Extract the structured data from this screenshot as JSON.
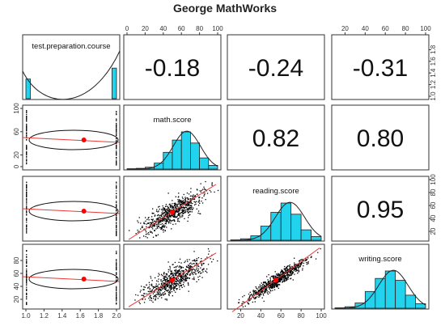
{
  "chart_data": {
    "type": "scatter",
    "title": "George MathWorks",
    "variables": [
      "test.preparation.course",
      "math.score",
      "reading.score",
      "writing.score"
    ],
    "correlations": [
      {
        "row": 0,
        "col": 1,
        "label": "-0.18",
        "value": -0.18
      },
      {
        "row": 0,
        "col": 2,
        "label": "-0.24",
        "value": -0.24
      },
      {
        "row": 0,
        "col": 3,
        "label": "-0.31",
        "value": -0.31
      },
      {
        "row": 1,
        "col": 2,
        "label": "0.82",
        "value": 0.82
      },
      {
        "row": 1,
        "col": 3,
        "label": "0.80",
        "value": 0.8
      },
      {
        "row": 2,
        "col": 3,
        "label": "0.95",
        "value": 0.95
      }
    ],
    "axes": {
      "top_col1": {
        "range": [
          0,
          100
        ],
        "ticks": [
          "0",
          "20",
          "40",
          "60",
          "80",
          "100"
        ]
      },
      "top_col3": {
        "range": [
          10,
          100
        ],
        "ticks": [
          "20",
          "40",
          "60",
          "80",
          "100"
        ]
      },
      "right_row0": {
        "range": [
          1.0,
          2.0
        ],
        "ticks": [
          "1.0",
          "1.2",
          "1.4",
          "1.6",
          "1.8"
        ]
      },
      "right_row2": {
        "range": [
          10,
          100
        ],
        "ticks": [
          "20",
          "40",
          "60",
          "80",
          "100"
        ]
      },
      "left_row1": {
        "range": [
          0,
          100
        ],
        "ticks": [
          "0",
          "20",
          "60",
          "100"
        ]
      },
      "left_row3": {
        "range": [
          10,
          100
        ],
        "ticks": [
          "20",
          "40",
          "60",
          "80"
        ]
      },
      "bottom_col0": {
        "range": [
          1.0,
          2.0
        ],
        "ticks": [
          "1.0",
          "1.2",
          "1.4",
          "1.6",
          "1.8",
          "2.0"
        ]
      },
      "bottom_col2": {
        "range": [
          10,
          100
        ],
        "ticks": [
          "20",
          "40",
          "60",
          "80",
          "100"
        ]
      }
    },
    "histograms": {
      "test.preparation.course": {
        "bins": [
          1.0,
          1.05,
          1.95,
          2.0
        ],
        "counts": [
          0.45,
          0,
          0.7
        ]
      },
      "math.score": {
        "bins": [
          0,
          10,
          20,
          30,
          40,
          50,
          60,
          70,
          80,
          90,
          100
        ],
        "counts": [
          0.01,
          0.02,
          0.05,
          0.16,
          0.45,
          0.78,
          1.0,
          0.7,
          0.3,
          0.1
        ]
      },
      "reading.score": {
        "bins": [
          10,
          20,
          30,
          40,
          50,
          60,
          70,
          80,
          90,
          100
        ],
        "counts": [
          0.01,
          0.04,
          0.12,
          0.38,
          0.75,
          1.0,
          0.7,
          0.28,
          0.1
        ]
      },
      "writing.score": {
        "bins": [
          10,
          20,
          30,
          40,
          50,
          60,
          70,
          80,
          90,
          100
        ],
        "counts": [
          0.01,
          0.04,
          0.14,
          0.45,
          0.8,
          1.0,
          0.75,
          0.35,
          0.12
        ]
      }
    },
    "group_means": {
      "test.preparation.course": 1.64,
      "math.score": 66,
      "reading.score": 69,
      "writing.score": 68
    }
  },
  "colors": {
    "histogram_fill": "#22d3ee",
    "regression": "#e53935",
    "points": "#000000",
    "mean": "#ff0000"
  }
}
